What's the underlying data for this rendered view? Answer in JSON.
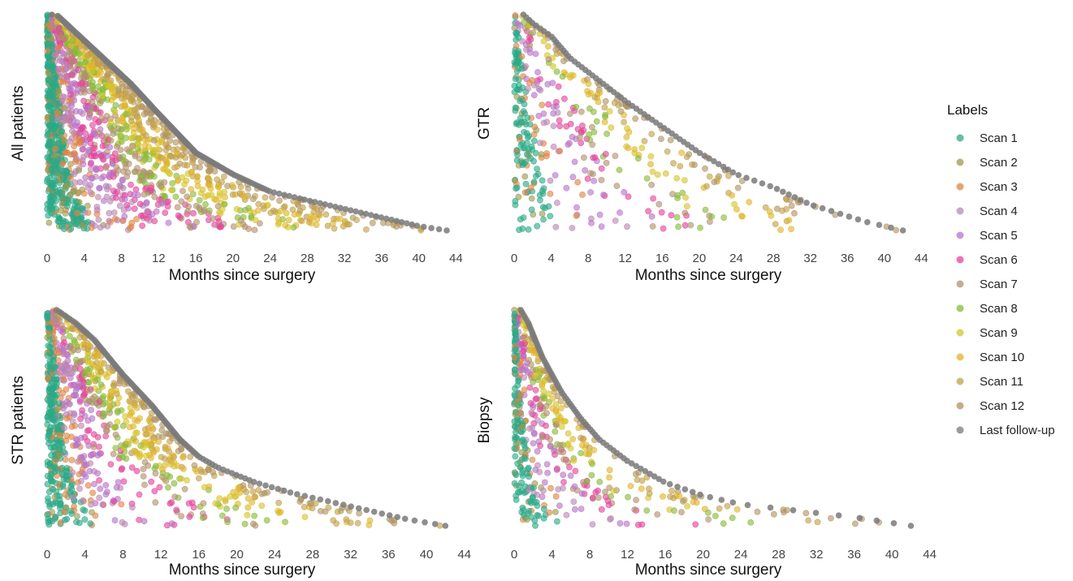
{
  "chart_data": {
    "type": "scatter",
    "x_axis_label": "Months since surgery",
    "x_ticks": [
      0,
      4,
      8,
      12,
      16,
      20,
      24,
      28,
      32,
      36,
      40,
      44
    ],
    "xlim": [
      0,
      43
    ],
    "legend": {
      "title": "Labels",
      "position": "right",
      "entries": [
        {
          "name": "Scan 1",
          "color": "#2aa987"
        },
        {
          "name": "Scan 2",
          "color": "#9c9a50"
        },
        {
          "name": "Scan 3",
          "color": "#de8544"
        },
        {
          "name": "Scan 4",
          "color": "#bc86b4"
        },
        {
          "name": "Scan 5",
          "color": "#b774c8"
        },
        {
          "name": "Scan 6",
          "color": "#e4449b"
        },
        {
          "name": "Scan 7",
          "color": "#b3906e"
        },
        {
          "name": "Scan 8",
          "color": "#88ba3a"
        },
        {
          "name": "Scan 9",
          "color": "#d6c42b"
        },
        {
          "name": "Scan 10",
          "color": "#e0b42a"
        },
        {
          "name": "Scan 11",
          "color": "#c2a04a"
        },
        {
          "name": "Scan 12",
          "color": "#b09463"
        },
        {
          "name": "Last follow-up",
          "color": "#7a7a7a"
        }
      ]
    },
    "panels": [
      {
        "title": "All patients",
        "last_followup_curve": {
          "x": [
            0.5,
            1,
            3,
            6,
            9,
            12,
            16,
            20,
            24,
            28,
            32,
            36,
            40,
            43
          ],
          "rank": [
            0.0,
            0.0,
            0.08,
            0.2,
            0.32,
            0.46,
            0.64,
            0.74,
            0.82,
            0.86,
            0.9,
            0.94,
            0.98,
            1.0
          ]
        },
        "n_points": 1700
      },
      {
        "title": "GTR",
        "last_followup_curve": {
          "x": [
            1,
            2,
            4,
            6,
            9,
            12,
            16,
            20,
            24,
            28,
            32,
            35,
            38,
            42
          ],
          "rank": [
            0.0,
            0.04,
            0.1,
            0.2,
            0.3,
            0.4,
            0.52,
            0.64,
            0.74,
            0.8,
            0.88,
            0.92,
            0.96,
            1.0
          ]
        },
        "n_points": 450
      },
      {
        "title": "STR patients",
        "last_followup_curve": {
          "x": [
            1,
            3,
            5,
            8,
            11,
            14,
            16,
            18,
            22,
            26,
            30,
            34,
            38,
            42
          ],
          "rank": [
            0.0,
            0.06,
            0.14,
            0.3,
            0.44,
            0.6,
            0.68,
            0.73,
            0.8,
            0.85,
            0.89,
            0.93,
            0.97,
            1.0
          ]
        },
        "n_points": 1000
      },
      {
        "title": "Biopsy",
        "last_followup_curve": {
          "x": [
            0.7,
            1.5,
            3,
            5,
            7,
            9,
            12,
            16,
            20,
            24,
            28,
            32,
            36,
            42
          ],
          "rank": [
            0.0,
            0.06,
            0.22,
            0.38,
            0.5,
            0.6,
            0.7,
            0.8,
            0.86,
            0.9,
            0.92,
            0.94,
            0.96,
            1.0
          ]
        },
        "n_points": 520
      }
    ]
  }
}
